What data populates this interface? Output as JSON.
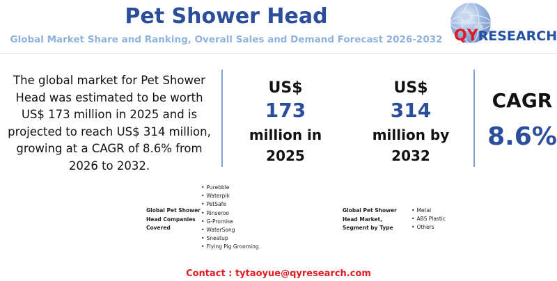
{
  "header": {
    "title": "Pet Shower Head",
    "subtitle": "Global Market Share and Ranking, Overall Sales and Demand Forecast 2026-2032",
    "logo_text_qy": "QY",
    "logo_text_rest": "RESEARCH"
  },
  "description": "The global market for Pet Shower Head was estimated to be worth US$ 173 million in 2025 and is projected to reach US$ 314 million, growing at a CAGR of 8.6% from 2026 to 2032.",
  "stats": [
    {
      "prefix": "US$",
      "value": "173",
      "suffix": "million in 2025"
    },
    {
      "prefix": "US$",
      "value": "314",
      "suffix": "million by 2032"
    }
  ],
  "cagr": {
    "label": "CAGR",
    "value": "8.6%"
  },
  "companies": {
    "title": "Global Pet Shower Head Companies Covered",
    "items": [
      "Purebble",
      "Waterpik",
      "PetSafe",
      "Rinseroo",
      "G-Promise",
      "WaterSong",
      "Sneatup",
      "Flying Pig Grooming"
    ]
  },
  "segments": {
    "title": "Global Pet Shower Head Market, Segment by Type",
    "items": [
      "Metal",
      "ABS Plastic",
      "Others"
    ]
  },
  "contact": "Contact : tytaoyue@qyresearch.com",
  "colors": {
    "title_blue": "#2a4d9c",
    "subtitle_blue": "#8fb2dd",
    "accent_red": "#e01b23"
  }
}
